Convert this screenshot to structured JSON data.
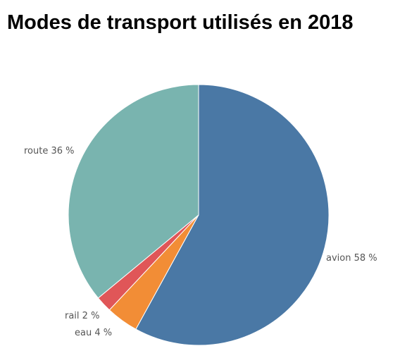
{
  "chart_data": {
    "type": "pie",
    "title": "Modes de transport utilisés en 2018",
    "slices": [
      {
        "name": "avion",
        "value": 58,
        "label": "avion 58 %",
        "color": "#4a78a5"
      },
      {
        "name": "eau",
        "value": 4,
        "label": "eau 4 %",
        "color": "#f28d36"
      },
      {
        "name": "rail",
        "value": 2,
        "label": "rail 2 %",
        "color": "#e05658"
      },
      {
        "name": "route",
        "value": 36,
        "label": "route 36 %",
        "color": "#79b4af"
      }
    ],
    "start": "12 o'clock",
    "direction": "clockwise",
    "legend": "none"
  }
}
